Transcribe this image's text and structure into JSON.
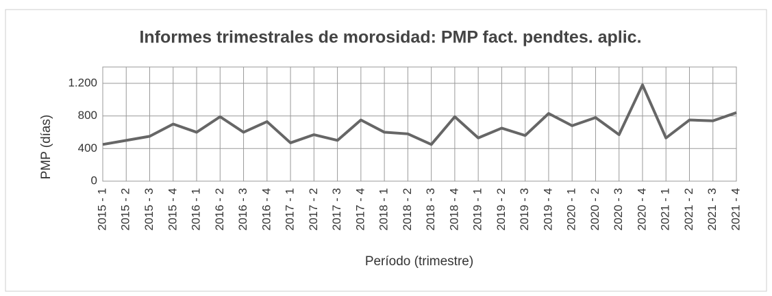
{
  "chart_data": {
    "type": "line",
    "title": "Informes trimestrales de morosidad: PMP fact. pendtes. aplic.",
    "xlabel": "Período (trimestre)",
    "ylabel": "PMP (días)",
    "categories": [
      "2015 - 1",
      "2015 - 2",
      "2015 - 3",
      "2015 - 4",
      "2016 - 1",
      "2016 - 2",
      "2016 - 3",
      "2016 - 4",
      "2017 - 1",
      "2017 - 2",
      "2017 - 3",
      "2017 - 4",
      "2018 - 1",
      "2018 - 2",
      "2018 - 3",
      "2018 - 4",
      "2019 - 1",
      "2019 - 2",
      "2019 - 3",
      "2019 - 4",
      "2020 - 1",
      "2020 - 2",
      "2020 - 3",
      "2020 - 4",
      "2021 - 1",
      "2021 - 2",
      "2021 - 3",
      "2021 - 4"
    ],
    "values": [
      450,
      500,
      550,
      700,
      600,
      790,
      600,
      730,
      470,
      570,
      500,
      750,
      600,
      580,
      450,
      790,
      530,
      650,
      560,
      830,
      680,
      780,
      570,
      1180,
      530,
      750,
      740,
      840
    ],
    "color": "#666666",
    "ylim": [
      0,
      1400
    ],
    "yticks": [
      0,
      400,
      800,
      {
        "value": 1200,
        "label": "1.200"
      }
    ],
    "grid": true
  }
}
